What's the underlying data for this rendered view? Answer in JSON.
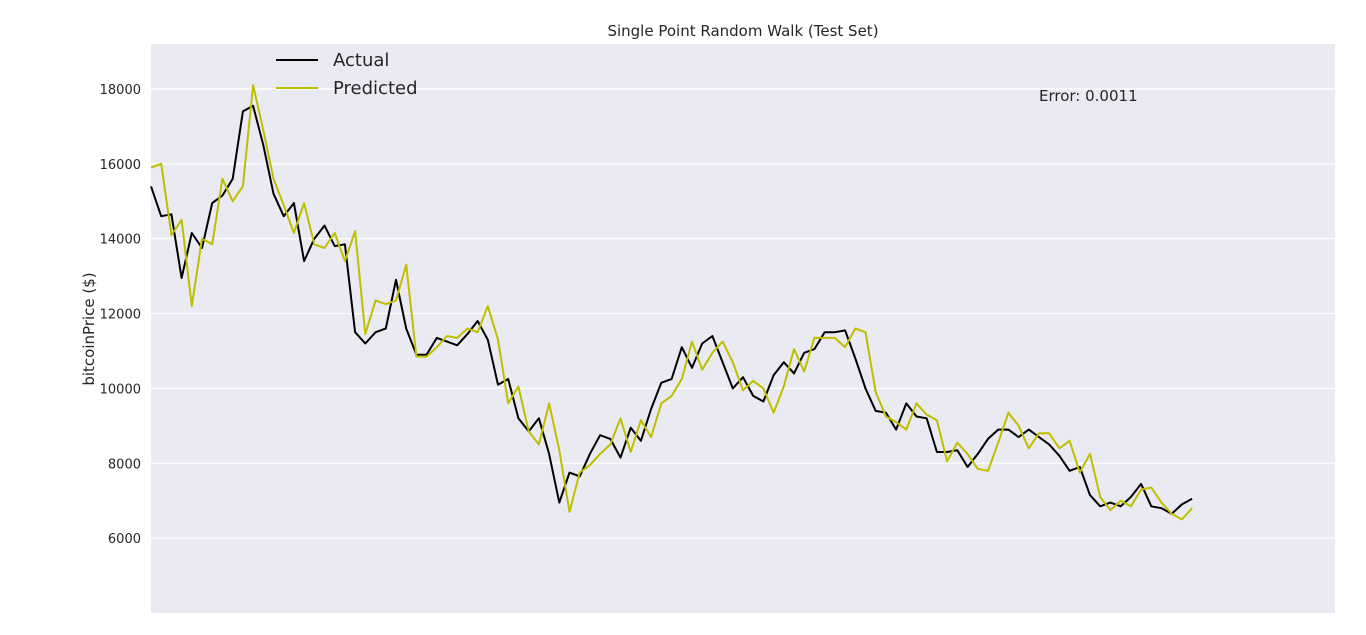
{
  "chart_data": {
    "type": "line",
    "title": "Single Point Random Walk (Test Set)",
    "xlabel": "",
    "ylabel": "bitcoinPrice ($)",
    "ylim": [
      4000,
      19200
    ],
    "xlim": [
      0,
      116
    ],
    "yticks": [
      6000,
      8000,
      10000,
      12000,
      14000,
      16000,
      18000
    ],
    "grid": true,
    "legend": "top-left",
    "annotation": "Error: 0.0011",
    "series": [
      {
        "name": "Actual",
        "color": "#000000",
        "values": [
          15400,
          14600,
          14650,
          12950,
          14150,
          13750,
          14950,
          15150,
          15600,
          17400,
          17550,
          16500,
          15200,
          14600,
          14950,
          13400,
          14000,
          14350,
          13800,
          13850,
          11500,
          11200,
          11500,
          11600,
          12900,
          11600,
          10900,
          10900,
          11350,
          11250,
          11150,
          11450,
          11800,
          11300,
          10100,
          10250,
          9200,
          8850,
          9200,
          8250,
          6950,
          7750,
          7650,
          8250,
          8750,
          8650,
          8150,
          8950,
          8600,
          9450,
          10150,
          10250,
          11100,
          10550,
          11200,
          11400,
          10700,
          10000,
          10300,
          9800,
          9650,
          10350,
          10700,
          10400,
          10950,
          11050,
          11500,
          11500,
          11550,
          10800,
          10000,
          9400,
          9350,
          8900,
          9600,
          9250,
          9200,
          8300,
          8300,
          8350,
          7900,
          8250,
          8650,
          8900,
          8900,
          8700,
          8900,
          8700,
          8500,
          8200,
          7800,
          7900,
          7150,
          6850,
          6950,
          6850,
          7100,
          7450,
          6850,
          6800,
          6650,
          6900,
          7050
        ]
      },
      {
        "name": "Predicted",
        "color": "#bfbf00",
        "values": [
          15900,
          16000,
          14100,
          14500,
          12200,
          14000,
          13850,
          15600,
          15000,
          15400,
          18100,
          16900,
          15600,
          14900,
          14150,
          14950,
          13850,
          13750,
          14150,
          13400,
          14200,
          11450,
          12350,
          12250,
          12350,
          13300,
          10850,
          10850,
          11100,
          11400,
          11350,
          11600,
          11500,
          12200,
          11300,
          9600,
          10050,
          8850,
          8500,
          9600,
          8350,
          6700,
          7750,
          7950,
          8250,
          8500,
          9200,
          8300,
          9150,
          8700,
          9600,
          9800,
          10250,
          11250,
          10500,
          10950,
          11250,
          10700,
          9950,
          10200,
          10000,
          9350,
          10050,
          11050,
          10450,
          11350,
          11350,
          11350,
          11100,
          11600,
          11500,
          9900,
          9250,
          9100,
          8900,
          9600,
          9300,
          9150,
          8050,
          8550,
          8250,
          7850,
          7800,
          8550,
          9350,
          9000,
          8400,
          8800,
          8800,
          8400,
          8600,
          7750,
          8250,
          7100,
          6750,
          7000,
          6850,
          7300,
          7350,
          6950,
          6650,
          6500,
          6800
        ]
      }
    ]
  }
}
